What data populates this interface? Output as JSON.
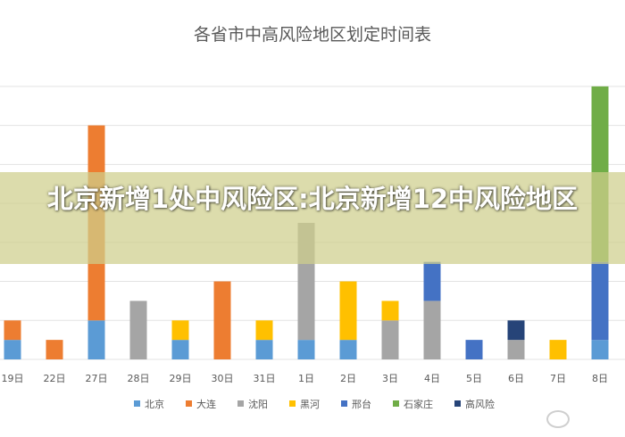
{
  "overlay": {
    "title": "北京新增1处中风险区:北京新增12中风险地区"
  },
  "watermark": {
    "text": "",
    "icon": "weibo-icon"
  },
  "chart_data": {
    "type": "bar",
    "stacked": true,
    "title": "各省市中高风险地区划定时间表",
    "xlabel": "",
    "ylabel": "",
    "ylim": [
      0,
      15
    ],
    "grid": true,
    "legend_position": "bottom",
    "categories": [
      "19日",
      "22日",
      "27日",
      "28日",
      "29日",
      "30日",
      "31日",
      "1日",
      "2日",
      "3日",
      "4日",
      "5日",
      "6日",
      "7日",
      "8日"
    ],
    "series": [
      {
        "name": "北京",
        "color": "#5b9bd5",
        "values": [
          1,
          0,
          2,
          0,
          1,
          0,
          1,
          1,
          1,
          0,
          0,
          0,
          0,
          0,
          1
        ]
      },
      {
        "name": "大连",
        "color": "#ed7d31",
        "values": [
          1,
          1,
          10,
          0,
          0,
          4,
          0,
          0,
          0,
          0,
          0,
          0,
          0,
          0,
          0
        ]
      },
      {
        "name": "沈阳",
        "color": "#a5a5a5",
        "values": [
          0,
          0,
          0,
          3,
          0,
          0,
          0,
          6,
          0,
          2,
          3,
          0,
          1,
          0,
          0
        ]
      },
      {
        "name": "黑河",
        "color": "#ffc000",
        "values": [
          0,
          0,
          0,
          0,
          1,
          0,
          1,
          0,
          3,
          1,
          0,
          0,
          0,
          1,
          0
        ]
      },
      {
        "name": "邢台",
        "color": "#4472c4",
        "values": [
          0,
          0,
          0,
          0,
          0,
          0,
          0,
          0,
          0,
          0,
          2,
          1,
          0,
          0,
          4
        ]
      },
      {
        "name": "石家庄",
        "color": "#70ad47",
        "values": [
          0,
          0,
          0,
          0,
          0,
          0,
          0,
          0,
          0,
          0,
          0,
          0,
          0,
          0,
          9
        ]
      },
      {
        "name": "高风险",
        "color": "#264478",
        "values": [
          0,
          0,
          0,
          0,
          0,
          0,
          0,
          0,
          0,
          0,
          0,
          0,
          1,
          0,
          0
        ]
      }
    ]
  }
}
